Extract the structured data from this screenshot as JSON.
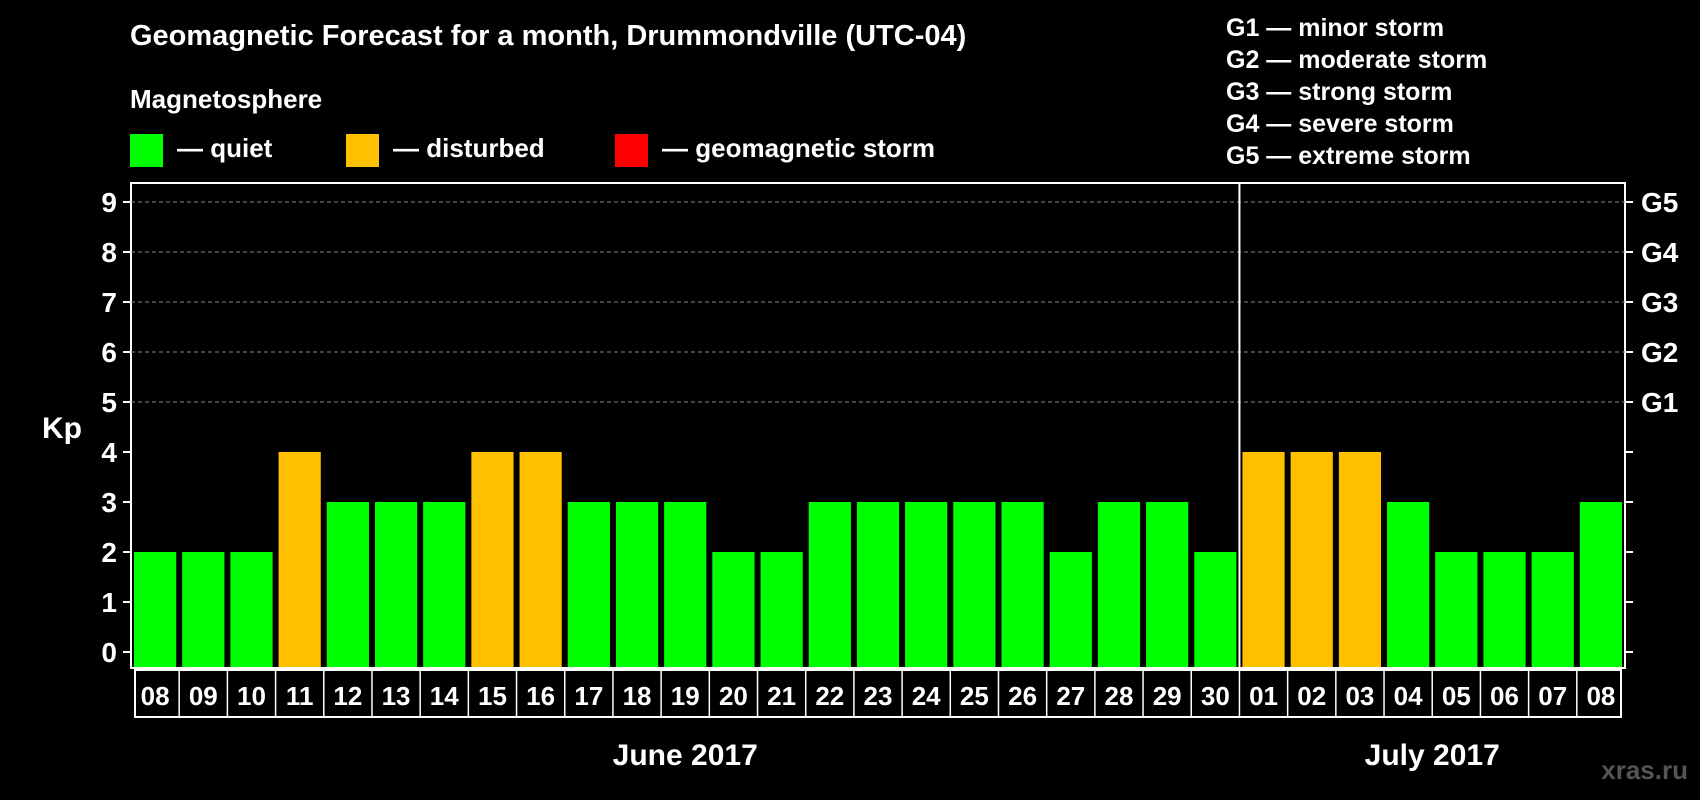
{
  "title": "Geomagnetic Forecast for a month, Drummondville (UTC-04)",
  "legend": {
    "heading": "Magnetosphere",
    "items": [
      {
        "label": "— quiet",
        "color": "#00ff00"
      },
      {
        "label": "— disturbed",
        "color": "#ffc000"
      },
      {
        "label": "— geomagnetic storm",
        "color": "#ff0000"
      }
    ]
  },
  "storm_scale": [
    "G1 — minor storm",
    "G2 — moderate storm",
    "G3 — strong storm",
    "G4 — severe storm",
    "G5 — extreme storm"
  ],
  "watermark": "xras.ru",
  "chart_data": {
    "type": "bar",
    "title": "Geomagnetic Forecast for a month, Drummondville (UTC-04)",
    "ylabel": "Kp",
    "ylim": [
      0,
      9
    ],
    "yticks": [
      "0",
      "1",
      "2",
      "3",
      "4",
      "5",
      "6",
      "7",
      "8",
      "9"
    ],
    "right_axis_labels": [
      {
        "kp": 5,
        "label": "G1"
      },
      {
        "kp": 6,
        "label": "G2"
      },
      {
        "kp": 7,
        "label": "G3"
      },
      {
        "kp": 8,
        "label": "G4"
      },
      {
        "kp": 9,
        "label": "G5"
      }
    ],
    "categories": [
      "08",
      "09",
      "10",
      "11",
      "12",
      "13",
      "14",
      "15",
      "16",
      "17",
      "18",
      "19",
      "20",
      "21",
      "22",
      "23",
      "24",
      "25",
      "26",
      "27",
      "28",
      "29",
      "30",
      "01",
      "02",
      "03",
      "04",
      "05",
      "06",
      "07",
      "08"
    ],
    "values": [
      2,
      2,
      2,
      4,
      3,
      3,
      3,
      4,
      4,
      3,
      3,
      3,
      2,
      2,
      3,
      3,
      3,
      3,
      3,
      2,
      3,
      3,
      2,
      4,
      4,
      4,
      3,
      2,
      2,
      2,
      3
    ],
    "status": [
      "quiet",
      "quiet",
      "quiet",
      "disturbed",
      "quiet",
      "quiet",
      "quiet",
      "disturbed",
      "disturbed",
      "quiet",
      "quiet",
      "quiet",
      "quiet",
      "quiet",
      "quiet",
      "quiet",
      "quiet",
      "quiet",
      "quiet",
      "quiet",
      "quiet",
      "quiet",
      "quiet",
      "disturbed",
      "disturbed",
      "disturbed",
      "quiet",
      "quiet",
      "quiet",
      "quiet",
      "quiet"
    ],
    "months": [
      {
        "label": "June 2017",
        "start_index": 0,
        "count": 23
      },
      {
        "label": "July 2017",
        "start_index": 23,
        "count": 8
      }
    ],
    "gridlines": [
      5,
      6,
      7,
      8,
      9
    ]
  }
}
